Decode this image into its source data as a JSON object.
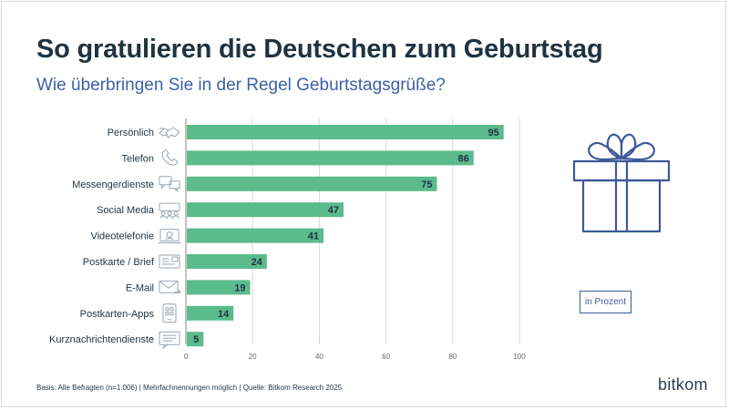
{
  "title": "So gratulieren die Deutschen zum Geburtstag",
  "subtitle": "Wie überbringen Sie in der Regel Geburtstagsgrüße?",
  "unit_label": "in Prozent",
  "footer": "Basis: Alle Befragten (n=1.006) | Mehrfachnennungen möglich | Quelle: Bitkom Research 2025",
  "logo": "bitkom",
  "colors": {
    "bar": "#5bbb8c",
    "title": "#1f3341",
    "subtitle": "#3d61a6",
    "icon": "#3d5a99",
    "category_icon": "#9aa6b2",
    "grid": "#d9d9d9"
  },
  "chart_data": {
    "type": "bar",
    "orientation": "horizontal",
    "categories": [
      "Persönlich",
      "Telefon",
      "Messengerdienste",
      "Social Media",
      "Videotelefonie",
      "Postkarte / Brief",
      "E-Mail",
      "Postkarten-Apps",
      "Kurznachrichtendienste"
    ],
    "category_icons": [
      "handshake-icon",
      "phone-icon",
      "chat-bubbles-icon",
      "social-media-icon",
      "video-call-icon",
      "postcard-icon",
      "email-icon",
      "app-phone-icon",
      "sms-icon"
    ],
    "values": [
      95,
      86,
      75,
      47,
      41,
      24,
      19,
      14,
      5
    ],
    "xlim": [
      0,
      100
    ],
    "xticks": [
      0,
      20,
      40,
      60,
      80,
      100
    ],
    "grid": "vertical",
    "data_labels": true
  }
}
